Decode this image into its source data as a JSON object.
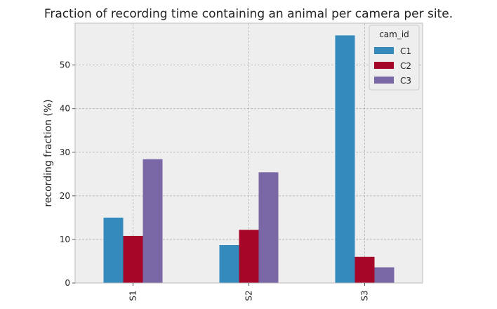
{
  "chart_data": {
    "type": "bar",
    "title": "Fraction of recording time containing an animal per camera per site.",
    "xlabel": "",
    "ylabel": "recording fraction (%)",
    "categories": [
      "S1",
      "S2",
      "S3"
    ],
    "series": [
      {
        "name": "C1",
        "values": [
          15.0,
          8.7,
          56.8
        ]
      },
      {
        "name": "C2",
        "values": [
          10.8,
          12.2,
          6.0
        ]
      },
      {
        "name": "C3",
        "values": [
          28.4,
          25.4,
          3.6
        ]
      }
    ],
    "ylim": [
      0,
      59.6
    ],
    "yticks": [
      0,
      10,
      20,
      30,
      40,
      50
    ],
    "grid": true,
    "legend": {
      "title": "cam_id",
      "placement": "top-right"
    },
    "colors": {
      "C1": "#348abd",
      "C2": "#a60628",
      "C3": "#7a68a6",
      "plot_background": "#eeeeee",
      "grid": "#b0b0b0"
    }
  }
}
